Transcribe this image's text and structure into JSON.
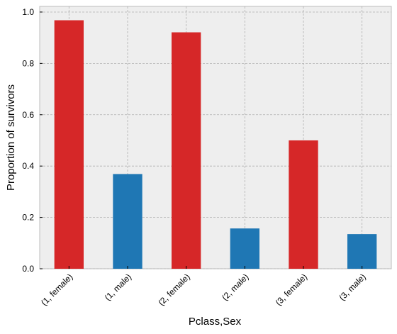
{
  "chart_data": {
    "type": "bar",
    "xlabel": "Pclass,Sex",
    "ylabel": "Proportion of survivors",
    "categories": [
      "(1, female)",
      "(1, male)",
      "(2, female)",
      "(2, male)",
      "(3, female)",
      "(3, male)"
    ],
    "values": [
      0.968,
      0.369,
      0.921,
      0.157,
      0.5,
      0.135
    ],
    "colors": [
      "#d62728",
      "#1f77b4",
      "#d62728",
      "#1f77b4",
      "#d62728",
      "#1f77b4"
    ],
    "ylim": [
      0,
      1.022
    ],
    "yticks": [
      {
        "value": 0,
        "label": "0.0"
      },
      0.2,
      0.4,
      0.6,
      0.8,
      {
        "value": 1,
        "label": "1.0"
      }
    ],
    "grid": true
  }
}
